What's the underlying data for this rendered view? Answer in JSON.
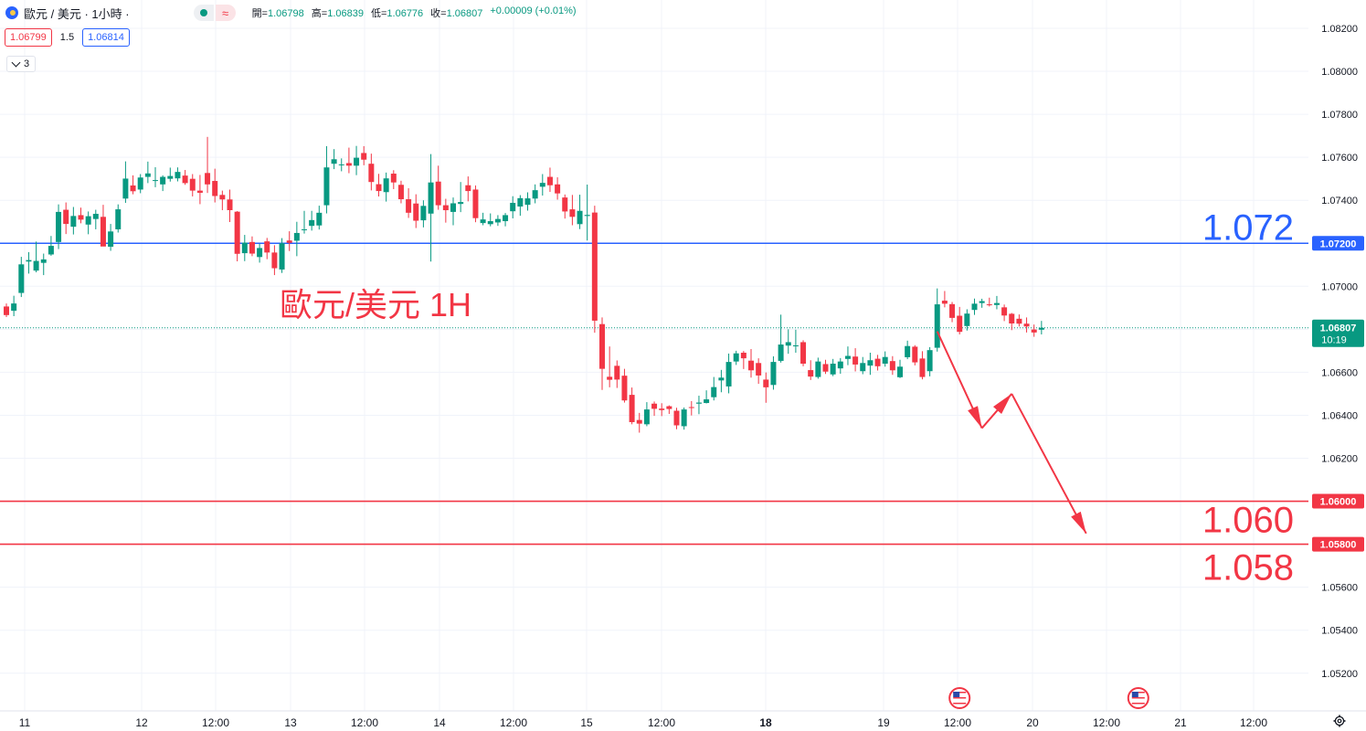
{
  "header": {
    "symbol": "歐元 / 美元 · 1小時 ·",
    "ohlc": {
      "open_label": "開=",
      "open": "1.06798",
      "high_label": "高=",
      "high": "1.06839",
      "low_label": "低=",
      "low": "1.06776",
      "close_label": "收=",
      "close": "1.06807",
      "change": "+0.00009 (+0.01%)"
    },
    "bid": "1.06799",
    "spread": "1.5",
    "ask": "1.06814",
    "indicators_count": "3"
  },
  "colors": {
    "up": "#089981",
    "down": "#f23645",
    "blue_line": "#2962ff",
    "red_line": "#f23645",
    "grid": "#f0f3fa"
  },
  "icons": [
    "market-open-dot-icon",
    "wave-icon",
    "chevron-down-icon",
    "us-flag-event-icon",
    "settings-gear-icon"
  ],
  "chart_data": {
    "type": "candlestick",
    "title": "歐元/美元 1H",
    "ylim": [
      1.0508,
      1.0836
    ],
    "y_ticks": [
      "1.08200",
      "1.08000",
      "1.07800",
      "1.07600",
      "1.07400",
      "1.07200",
      "1.07000",
      "1.06800",
      "1.06600",
      "1.06400",
      "1.06200",
      "1.06000",
      "1.05800",
      "1.05600",
      "1.05400",
      "1.05200"
    ],
    "x_ticks": [
      "11",
      "12",
      "12:00",
      "13",
      "12:00",
      "14",
      "12:00",
      "15",
      "12:00",
      "18",
      "19",
      "12:00",
      "20",
      "12:00",
      "21",
      "12:00"
    ],
    "x_tick_bold": [
      "18"
    ],
    "last_price": "1.06807",
    "countdown": "10:19",
    "horizontal_lines": [
      {
        "value": 1.072,
        "label": "1.072",
        "axis_label": "1.07200",
        "color": "#2962ff"
      },
      {
        "value": 1.06,
        "label": "1.060",
        "axis_label": "1.06000",
        "color": "#f23645"
      },
      {
        "value": 1.058,
        "label": "1.058",
        "axis_label": "1.05800",
        "color": "#f23645"
      }
    ],
    "forecast_path": [
      {
        "bar": 125,
        "value": 1.0679
      },
      {
        "bar": 131,
        "value": 1.0634
      },
      {
        "bar": 135,
        "value": 1.065
      },
      {
        "bar": 145,
        "value": 1.0585
      }
    ],
    "event_markers_at_bar": [
      128,
      152
    ],
    "candles": [
      {
        "o": 1.06906,
        "h": 1.0692,
        "l": 1.06857,
        "c": 1.06866
      },
      {
        "o": 1.06886,
        "h": 1.06956,
        "l": 1.06861,
        "c": 1.0692
      },
      {
        "o": 1.06969,
        "h": 1.07137,
        "l": 1.0695,
        "c": 1.07102
      },
      {
        "o": 1.07115,
        "h": 1.07159,
        "l": 1.07059,
        "c": 1.07122
      },
      {
        "o": 1.07073,
        "h": 1.07208,
        "l": 1.07065,
        "c": 1.07118
      },
      {
        "o": 1.07109,
        "h": 1.07152,
        "l": 1.07052,
        "c": 1.07125
      },
      {
        "o": 1.07148,
        "h": 1.07234,
        "l": 1.07142,
        "c": 1.07188
      },
      {
        "o": 1.07206,
        "h": 1.07381,
        "l": 1.07173,
        "c": 1.07346
      },
      {
        "o": 1.07356,
        "h": 1.0739,
        "l": 1.07243,
        "c": 1.0729
      },
      {
        "o": 1.07277,
        "h": 1.07369,
        "l": 1.07241,
        "c": 1.07327
      },
      {
        "o": 1.07331,
        "h": 1.07366,
        "l": 1.07293,
        "c": 1.0731
      },
      {
        "o": 1.07287,
        "h": 1.07348,
        "l": 1.07242,
        "c": 1.07326
      },
      {
        "o": 1.07313,
        "h": 1.07356,
        "l": 1.07265,
        "c": 1.07337
      },
      {
        "o": 1.07323,
        "h": 1.07379,
        "l": 1.07199,
        "c": 1.07185
      },
      {
        "o": 1.07184,
        "h": 1.0729,
        "l": 1.07165,
        "c": 1.07255
      },
      {
        "o": 1.07265,
        "h": 1.07381,
        "l": 1.0725,
        "c": 1.07358
      },
      {
        "o": 1.07408,
        "h": 1.07581,
        "l": 1.07388,
        "c": 1.07501
      },
      {
        "o": 1.07469,
        "h": 1.07516,
        "l": 1.07428,
        "c": 1.07442
      },
      {
        "o": 1.0745,
        "h": 1.07522,
        "l": 1.07433,
        "c": 1.07506
      },
      {
        "o": 1.07509,
        "h": 1.0758,
        "l": 1.0748,
        "c": 1.07525
      },
      {
        "o": 1.0749,
        "h": 1.07554,
        "l": 1.07461,
        "c": 1.07494
      },
      {
        "o": 1.07474,
        "h": 1.07516,
        "l": 1.07443,
        "c": 1.07509
      },
      {
        "o": 1.075,
        "h": 1.07552,
        "l": 1.07487,
        "c": 1.07513
      },
      {
        "o": 1.07502,
        "h": 1.07553,
        "l": 1.07488,
        "c": 1.07532
      },
      {
        "o": 1.07515,
        "h": 1.07541,
        "l": 1.07472,
        "c": 1.0748
      },
      {
        "o": 1.075,
        "h": 1.07522,
        "l": 1.07418,
        "c": 1.07445
      },
      {
        "o": 1.07445,
        "h": 1.07518,
        "l": 1.07382,
        "c": 1.07435
      },
      {
        "o": 1.07527,
        "h": 1.07695,
        "l": 1.07434,
        "c": 1.07474
      },
      {
        "o": 1.0749,
        "h": 1.07547,
        "l": 1.0739,
        "c": 1.0742
      },
      {
        "o": 1.07425,
        "h": 1.07445,
        "l": 1.07354,
        "c": 1.07404
      },
      {
        "o": 1.07404,
        "h": 1.0745,
        "l": 1.07299,
        "c": 1.07354
      },
      {
        "o": 1.07347,
        "h": 1.0735,
        "l": 1.07116,
        "c": 1.07151
      },
      {
        "o": 1.07154,
        "h": 1.07239,
        "l": 1.07117,
        "c": 1.07203
      },
      {
        "o": 1.07206,
        "h": 1.07232,
        "l": 1.0714,
        "c": 1.07152
      },
      {
        "o": 1.07136,
        "h": 1.07198,
        "l": 1.0711,
        "c": 1.07178
      },
      {
        "o": 1.07209,
        "h": 1.07225,
        "l": 1.07126,
        "c": 1.07157
      },
      {
        "o": 1.07157,
        "h": 1.07191,
        "l": 1.07052,
        "c": 1.07084
      },
      {
        "o": 1.07078,
        "h": 1.07224,
        "l": 1.07062,
        "c": 1.072
      },
      {
        "o": 1.07213,
        "h": 1.07256,
        "l": 1.07164,
        "c": 1.07202
      },
      {
        "o": 1.07212,
        "h": 1.073,
        "l": 1.0714,
        "c": 1.07248
      },
      {
        "o": 1.07263,
        "h": 1.07351,
        "l": 1.07245,
        "c": 1.07265
      },
      {
        "o": 1.07281,
        "h": 1.07351,
        "l": 1.07259,
        "c": 1.07308
      },
      {
        "o": 1.07283,
        "h": 1.07375,
        "l": 1.07264,
        "c": 1.07342
      },
      {
        "o": 1.07377,
        "h": 1.07652,
        "l": 1.07339,
        "c": 1.07553
      },
      {
        "o": 1.0757,
        "h": 1.07638,
        "l": 1.07545,
        "c": 1.07591
      },
      {
        "o": 1.07566,
        "h": 1.07595,
        "l": 1.07535,
        "c": 1.07567
      },
      {
        "o": 1.07573,
        "h": 1.07645,
        "l": 1.07526,
        "c": 1.07561
      },
      {
        "o": 1.07561,
        "h": 1.07653,
        "l": 1.07517,
        "c": 1.07598
      },
      {
        "o": 1.0762,
        "h": 1.07652,
        "l": 1.07563,
        "c": 1.07589
      },
      {
        "o": 1.0757,
        "h": 1.07617,
        "l": 1.07446,
        "c": 1.07485
      },
      {
        "o": 1.07475,
        "h": 1.07523,
        "l": 1.07418,
        "c": 1.07443
      },
      {
        "o": 1.07438,
        "h": 1.07529,
        "l": 1.07394,
        "c": 1.07502
      },
      {
        "o": 1.07524,
        "h": 1.0754,
        "l": 1.07452,
        "c": 1.07483
      },
      {
        "o": 1.07472,
        "h": 1.07491,
        "l": 1.07386,
        "c": 1.07405
      },
      {
        "o": 1.07405,
        "h": 1.07456,
        "l": 1.07318,
        "c": 1.07342
      },
      {
        "o": 1.07385,
        "h": 1.07428,
        "l": 1.07271,
        "c": 1.07305
      },
      {
        "o": 1.07307,
        "h": 1.074,
        "l": 1.07274,
        "c": 1.07374
      },
      {
        "o": 1.07338,
        "h": 1.07615,
        "l": 1.07115,
        "c": 1.07483
      },
      {
        "o": 1.07487,
        "h": 1.07561,
        "l": 1.07356,
        "c": 1.07377
      },
      {
        "o": 1.07377,
        "h": 1.07407,
        "l": 1.07296,
        "c": 1.07354
      },
      {
        "o": 1.07346,
        "h": 1.07413,
        "l": 1.07284,
        "c": 1.07386
      },
      {
        "o": 1.07383,
        "h": 1.07485,
        "l": 1.07345,
        "c": 1.07392
      },
      {
        "o": 1.0747,
        "h": 1.07511,
        "l": 1.07395,
        "c": 1.07443
      },
      {
        "o": 1.0745,
        "h": 1.07469,
        "l": 1.07298,
        "c": 1.07317
      },
      {
        "o": 1.07294,
        "h": 1.07342,
        "l": 1.07284,
        "c": 1.07311
      },
      {
        "o": 1.07289,
        "h": 1.07339,
        "l": 1.07279,
        "c": 1.07303
      },
      {
        "o": 1.07297,
        "h": 1.07331,
        "l": 1.07281,
        "c": 1.07313
      },
      {
        "o": 1.07303,
        "h": 1.07341,
        "l": 1.07279,
        "c": 1.07331
      },
      {
        "o": 1.07349,
        "h": 1.07419,
        "l": 1.07316,
        "c": 1.07388
      },
      {
        "o": 1.07371,
        "h": 1.07424,
        "l": 1.07328,
        "c": 1.0741
      },
      {
        "o": 1.07379,
        "h": 1.07437,
        "l": 1.07352,
        "c": 1.07409
      },
      {
        "o": 1.07408,
        "h": 1.07474,
        "l": 1.07386,
        "c": 1.07447
      },
      {
        "o": 1.07463,
        "h": 1.07522,
        "l": 1.07422,
        "c": 1.07481
      },
      {
        "o": 1.07509,
        "h": 1.07552,
        "l": 1.07439,
        "c": 1.0747
      },
      {
        "o": 1.07474,
        "h": 1.07507,
        "l": 1.07403,
        "c": 1.07432
      },
      {
        "o": 1.07413,
        "h": 1.07427,
        "l": 1.07315,
        "c": 1.07348
      },
      {
        "o": 1.07358,
        "h": 1.07425,
        "l": 1.07284,
        "c": 1.07323
      },
      {
        "o": 1.07289,
        "h": 1.07426,
        "l": 1.07266,
        "c": 1.07351
      },
      {
        "o": 1.07327,
        "h": 1.07473,
        "l": 1.07213,
        "c": 1.07332
      },
      {
        "o": 1.07343,
        "h": 1.07375,
        "l": 1.06784,
        "c": 1.0684
      },
      {
        "o": 1.06824,
        "h": 1.06855,
        "l": 1.06518,
        "c": 1.06616
      },
      {
        "o": 1.06579,
        "h": 1.0672,
        "l": 1.0653,
        "c": 1.06565
      },
      {
        "o": 1.0663,
        "h": 1.06655,
        "l": 1.06527,
        "c": 1.06566
      },
      {
        "o": 1.06584,
        "h": 1.06616,
        "l": 1.06459,
        "c": 1.06469
      },
      {
        "o": 1.06495,
        "h": 1.06529,
        "l": 1.06358,
        "c": 1.06368
      },
      {
        "o": 1.06378,
        "h": 1.06411,
        "l": 1.06319,
        "c": 1.06361
      },
      {
        "o": 1.06358,
        "h": 1.06461,
        "l": 1.06349,
        "c": 1.06427
      },
      {
        "o": 1.06454,
        "h": 1.06464,
        "l": 1.06397,
        "c": 1.0643
      },
      {
        "o": 1.06431,
        "h": 1.06456,
        "l": 1.06396,
        "c": 1.06424
      },
      {
        "o": 1.06442,
        "h": 1.06446,
        "l": 1.06406,
        "c": 1.06429
      },
      {
        "o": 1.06421,
        "h": 1.06435,
        "l": 1.06335,
        "c": 1.06353
      },
      {
        "o": 1.06349,
        "h": 1.06436,
        "l": 1.06333,
        "c": 1.06427
      },
      {
        "o": 1.06438,
        "h": 1.06466,
        "l": 1.06399,
        "c": 1.06434
      },
      {
        "o": 1.06454,
        "h": 1.06491,
        "l": 1.06405,
        "c": 1.06459
      },
      {
        "o": 1.06457,
        "h": 1.06516,
        "l": 1.06455,
        "c": 1.06474
      },
      {
        "o": 1.06484,
        "h": 1.06578,
        "l": 1.06469,
        "c": 1.06531
      },
      {
        "o": 1.06562,
        "h": 1.06611,
        "l": 1.06507,
        "c": 1.06575
      },
      {
        "o": 1.06534,
        "h": 1.06687,
        "l": 1.06502,
        "c": 1.06648
      },
      {
        "o": 1.0665,
        "h": 1.067,
        "l": 1.06634,
        "c": 1.06688
      },
      {
        "o": 1.06691,
        "h": 1.06699,
        "l": 1.06615,
        "c": 1.06665
      },
      {
        "o": 1.06654,
        "h": 1.06708,
        "l": 1.06575,
        "c": 1.06609
      },
      {
        "o": 1.06643,
        "h": 1.06665,
        "l": 1.06546,
        "c": 1.06585
      },
      {
        "o": 1.06566,
        "h": 1.06599,
        "l": 1.06458,
        "c": 1.0653
      },
      {
        "o": 1.06541,
        "h": 1.06674,
        "l": 1.06519,
        "c": 1.06648
      },
      {
        "o": 1.06653,
        "h": 1.06868,
        "l": 1.06645,
        "c": 1.06729
      },
      {
        "o": 1.06724,
        "h": 1.068,
        "l": 1.06686,
        "c": 1.0674
      },
      {
        "o": 1.06722,
        "h": 1.06798,
        "l": 1.06691,
        "c": 1.06725
      },
      {
        "o": 1.0674,
        "h": 1.06749,
        "l": 1.06628,
        "c": 1.0664
      },
      {
        "o": 1.0661,
        "h": 1.06656,
        "l": 1.06564,
        "c": 1.0658
      },
      {
        "o": 1.06578,
        "h": 1.06668,
        "l": 1.0657,
        "c": 1.0665
      },
      {
        "o": 1.06638,
        "h": 1.06658,
        "l": 1.06592,
        "c": 1.06603
      },
      {
        "o": 1.0659,
        "h": 1.06662,
        "l": 1.06582,
        "c": 1.0664
      },
      {
        "o": 1.06618,
        "h": 1.06666,
        "l": 1.06593,
        "c": 1.0665
      },
      {
        "o": 1.06662,
        "h": 1.0672,
        "l": 1.06633,
        "c": 1.06676
      },
      {
        "o": 1.06673,
        "h": 1.06712,
        "l": 1.06604,
        "c": 1.06636
      },
      {
        "o": 1.06605,
        "h": 1.06671,
        "l": 1.06591,
        "c": 1.06643
      },
      {
        "o": 1.06631,
        "h": 1.06691,
        "l": 1.06588,
        "c": 1.06656
      },
      {
        "o": 1.06663,
        "h": 1.06681,
        "l": 1.06608,
        "c": 1.06628
      },
      {
        "o": 1.0664,
        "h": 1.06697,
        "l": 1.06626,
        "c": 1.06671
      },
      {
        "o": 1.06652,
        "h": 1.06675,
        "l": 1.06588,
        "c": 1.06609
      },
      {
        "o": 1.06577,
        "h": 1.06658,
        "l": 1.06573,
        "c": 1.06626
      },
      {
        "o": 1.0667,
        "h": 1.06747,
        "l": 1.06661,
        "c": 1.06722
      },
      {
        "o": 1.06719,
        "h": 1.06726,
        "l": 1.06632,
        "c": 1.06646
      },
      {
        "o": 1.06664,
        "h": 1.06698,
        "l": 1.06567,
        "c": 1.06578
      },
      {
        "o": 1.06605,
        "h": 1.06717,
        "l": 1.06581,
        "c": 1.06703
      },
      {
        "o": 1.06714,
        "h": 1.0699,
        "l": 1.06696,
        "c": 1.06916
      },
      {
        "o": 1.06933,
        "h": 1.06978,
        "l": 1.06902,
        "c": 1.06919
      },
      {
        "o": 1.06917,
        "h": 1.06927,
        "l": 1.06833,
        "c": 1.06853
      },
      {
        "o": 1.06863,
        "h": 1.06904,
        "l": 1.06776,
        "c": 1.06788
      },
      {
        "o": 1.06815,
        "h": 1.06893,
        "l": 1.06794,
        "c": 1.06873
      },
      {
        "o": 1.0689,
        "h": 1.06943,
        "l": 1.06867,
        "c": 1.06919
      },
      {
        "o": 1.06922,
        "h": 1.06942,
        "l": 1.069,
        "c": 1.06931
      },
      {
        "o": 1.06916,
        "h": 1.06947,
        "l": 1.06906,
        "c": 1.06912
      },
      {
        "o": 1.06913,
        "h": 1.06955,
        "l": 1.06893,
        "c": 1.06922
      },
      {
        "o": 1.06902,
        "h": 1.06915,
        "l": 1.06838,
        "c": 1.06864
      },
      {
        "o": 1.06872,
        "h": 1.06876,
        "l": 1.06796,
        "c": 1.06827
      },
      {
        "o": 1.06849,
        "h": 1.06869,
        "l": 1.06813,
        "c": 1.06826
      },
      {
        "o": 1.06826,
        "h": 1.06855,
        "l": 1.06785,
        "c": 1.06813
      },
      {
        "o": 1.06799,
        "h": 1.06822,
        "l": 1.06765,
        "c": 1.06785
      },
      {
        "o": 1.06798,
        "h": 1.06839,
        "l": 1.06776,
        "c": 1.06807
      }
    ]
  }
}
